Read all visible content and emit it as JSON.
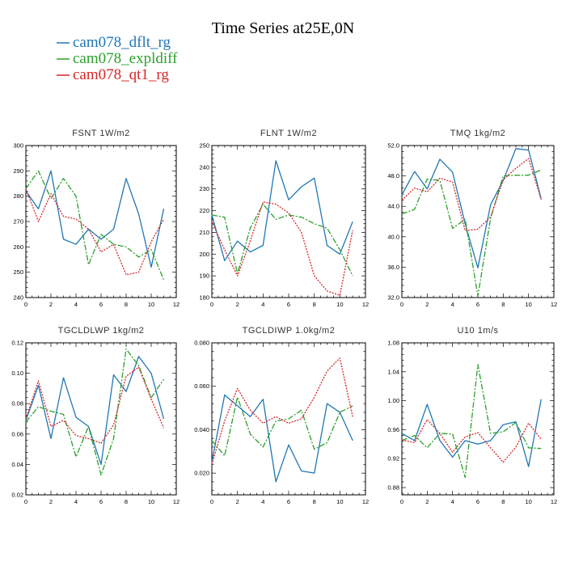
{
  "title": "Time Series at25E,0N",
  "legend": [
    {
      "label": "cam078_dflt_rg",
      "color": "#1f77b4",
      "dash": "solid"
    },
    {
      "label": "cam078_expldiff",
      "color": "#2ca02c",
      "dash": "dashdot"
    },
    {
      "label": "cam078_qt1_rg",
      "color": "#d62728",
      "dash": "dotted"
    }
  ],
  "chart_data": [
    {
      "type": "line",
      "title": "FSNT   1W/m2",
      "x": [
        0,
        1,
        2,
        3,
        4,
        5,
        6,
        7,
        8,
        9,
        10,
        11
      ],
      "xlim": [
        0,
        12
      ],
      "ylim": [
        240,
        300
      ],
      "xticks": [
        0,
        2,
        4,
        6,
        8,
        10,
        12
      ],
      "xtick_labels": [
        "0",
        "2",
        "4",
        "6",
        "8",
        "10",
        "12"
      ],
      "yticks": [
        240,
        250,
        260,
        270,
        280,
        290,
        300
      ],
      "ytick_labels": [
        "240",
        "250",
        "260",
        "270",
        "280",
        "290",
        "300"
      ],
      "series": [
        {
          "name": "cam078_dflt_rg",
          "values": [
            282,
            275,
            290,
            263,
            261,
            267,
            263,
            267,
            287,
            273,
            252,
            275
          ]
        },
        {
          "name": "cam078_expldiff",
          "values": [
            283,
            290,
            279,
            287,
            280,
            253,
            265,
            261,
            260,
            256,
            259,
            247
          ]
        },
        {
          "name": "cam078_qt1_rg",
          "values": [
            283,
            270,
            281,
            272,
            271,
            267,
            258,
            261,
            249,
            250,
            262,
            271
          ]
        }
      ]
    },
    {
      "type": "line",
      "title": "FLNT   1W/m2",
      "x": [
        0,
        1,
        2,
        3,
        4,
        5,
        6,
        7,
        8,
        9,
        10,
        11
      ],
      "xlim": [
        0,
        12
      ],
      "ylim": [
        180,
        250
      ],
      "xticks": [
        0,
        2,
        4,
        6,
        8,
        10,
        12
      ],
      "xtick_labels": [
        "0",
        "2",
        "4",
        "6",
        "8",
        "10",
        "12"
      ],
      "yticks": [
        180,
        190,
        200,
        210,
        220,
        230,
        240,
        250
      ],
      "ytick_labels": [
        "180",
        "190",
        "200",
        "210",
        "220",
        "230",
        "240",
        "250"
      ],
      "series": [
        {
          "name": "cam078_dflt_rg",
          "values": [
            218,
            197,
            206,
            201,
            204,
            243,
            225,
            231,
            235,
            204,
            200,
            215
          ]
        },
        {
          "name": "cam078_expldiff",
          "values": [
            218,
            217,
            191,
            212,
            223,
            216,
            218,
            217,
            214,
            212,
            202,
            190
          ]
        },
        {
          "name": "cam078_qt1_rg",
          "values": [
            215,
            202,
            190,
            206,
            224,
            223,
            219,
            210,
            190,
            183,
            181,
            211
          ]
        }
      ]
    },
    {
      "type": "line",
      "title": "TMQ   1kg/m2",
      "x": [
        0,
        1,
        2,
        3,
        4,
        5,
        6,
        7,
        8,
        9,
        10,
        11
      ],
      "xlim": [
        0,
        12
      ],
      "ylim": [
        32,
        52
      ],
      "xticks": [
        0,
        2,
        4,
        6,
        8,
        10,
        12
      ],
      "xtick_labels": [
        "0",
        "2",
        "4",
        "6",
        "8",
        "10",
        "12"
      ],
      "yticks": [
        32,
        36,
        40,
        44,
        48,
        52
      ],
      "ytick_labels": [
        "32.0",
        "36.0",
        "40.0",
        "44.0",
        "48.0",
        "52.0"
      ],
      "series": [
        {
          "name": "cam078_dflt_rg",
          "values": [
            45.5,
            48.6,
            46.3,
            50.2,
            48.5,
            41.7,
            35.9,
            44.2,
            47.4,
            51.6,
            51.4,
            45.0
          ]
        },
        {
          "name": "cam078_expldiff",
          "values": [
            43.0,
            43.6,
            47.6,
            47.4,
            41.1,
            42.3,
            32.2,
            42.4,
            48.0,
            48.1,
            48.1,
            48.8
          ]
        },
        {
          "name": "cam078_qt1_rg",
          "values": [
            44.8,
            46.4,
            45.9,
            47.7,
            47.2,
            40.8,
            41.0,
            42.6,
            47.5,
            49.0,
            50.3,
            44.9
          ]
        }
      ]
    },
    {
      "type": "line",
      "title": "TGCLDLWP   1kg/m2",
      "x": [
        0,
        1,
        2,
        3,
        4,
        5,
        6,
        7,
        8,
        9,
        10,
        11
      ],
      "xlim": [
        0,
        12
      ],
      "ylim": [
        0.02,
        0.12
      ],
      "xticks": [
        0,
        2,
        4,
        6,
        8,
        10,
        12
      ],
      "xtick_labels": [
        "0",
        "2",
        "4",
        "6",
        "8",
        "10",
        "12"
      ],
      "yticks": [
        0.02,
        0.04,
        0.06,
        0.08,
        0.1,
        0.12
      ],
      "ytick_labels": [
        "0.02",
        "0.04",
        "0.06",
        "0.08",
        "0.10",
        "0.12"
      ],
      "series": [
        {
          "name": "cam078_dflt_rg",
          "values": [
            0.069,
            0.092,
            0.057,
            0.097,
            0.071,
            0.065,
            0.04,
            0.099,
            0.088,
            0.111,
            0.1,
            0.07
          ]
        },
        {
          "name": "cam078_expldiff",
          "values": [
            0.068,
            0.078,
            0.075,
            0.073,
            0.045,
            0.065,
            0.033,
            0.057,
            0.116,
            0.105,
            0.084,
            0.096
          ]
        },
        {
          "name": "cam078_qt1_rg",
          "values": [
            0.07,
            0.095,
            0.065,
            0.069,
            0.059,
            0.057,
            0.054,
            0.066,
            0.098,
            0.104,
            0.083,
            0.064
          ]
        }
      ]
    },
    {
      "type": "line",
      "title": "TGCLDIWP   1.0kg/m2",
      "x": [
        0,
        1,
        2,
        3,
        4,
        5,
        6,
        7,
        8,
        9,
        10,
        11
      ],
      "xlim": [
        0,
        12
      ],
      "ylim": [
        0.01,
        0.08
      ],
      "xticks": [
        0,
        2,
        4,
        6,
        8,
        10,
        12
      ],
      "xtick_labels": [
        "0",
        "2",
        "4",
        "6",
        "8",
        "10",
        "12"
      ],
      "yticks": [
        0.02,
        0.04,
        0.06,
        0.08
      ],
      "ytick_labels": [
        "0.020",
        "0.040",
        "0.060",
        "0.080"
      ],
      "series": [
        {
          "name": "cam078_dflt_rg",
          "values": [
            0.025,
            0.056,
            0.051,
            0.046,
            0.054,
            0.016,
            0.033,
            0.021,
            0.02,
            0.052,
            0.048,
            0.035
          ]
        },
        {
          "name": "cam078_expldiff",
          "values": [
            0.035,
            0.028,
            0.055,
            0.038,
            0.032,
            0.044,
            0.045,
            0.049,
            0.031,
            0.034,
            0.048,
            0.051
          ]
        },
        {
          "name": "cam078_qt1_rg",
          "values": [
            0.024,
            0.044,
            0.059,
            0.049,
            0.043,
            0.046,
            0.043,
            0.045,
            0.055,
            0.067,
            0.073,
            0.046
          ]
        }
      ]
    },
    {
      "type": "line",
      "title": "U10   1m/s",
      "x": [
        0,
        1,
        2,
        3,
        4,
        5,
        6,
        7,
        8,
        9,
        10,
        11
      ],
      "xlim": [
        0,
        12
      ],
      "ylim": [
        0.87,
        1.08
      ],
      "xticks": [
        0,
        2,
        4,
        6,
        8,
        10,
        12
      ],
      "xtick_labels": [
        "0",
        "2",
        "4",
        "6",
        "8",
        "10",
        "12"
      ],
      "yticks": [
        0.88,
        0.92,
        0.96,
        1.0,
        1.04,
        1.08
      ],
      "ytick_labels": [
        "0.88",
        "0.92",
        "0.96",
        "1.00",
        "1.04",
        "1.08"
      ],
      "series": [
        {
          "name": "cam078_dflt_rg",
          "values": [
            0.955,
            0.945,
            0.995,
            0.945,
            0.922,
            0.945,
            0.94,
            0.945,
            0.967,
            0.971,
            0.909,
            1.002
          ]
        },
        {
          "name": "cam078_expldiff",
          "values": [
            0.945,
            0.952,
            0.935,
            0.955,
            0.954,
            0.894,
            1.05,
            0.955,
            0.957,
            0.97,
            0.935,
            0.934
          ]
        },
        {
          "name": "cam078_qt1_rg",
          "values": [
            0.946,
            0.942,
            0.974,
            0.955,
            0.929,
            0.95,
            0.956,
            0.935,
            0.915,
            0.936,
            0.969,
            0.947
          ]
        }
      ]
    }
  ]
}
